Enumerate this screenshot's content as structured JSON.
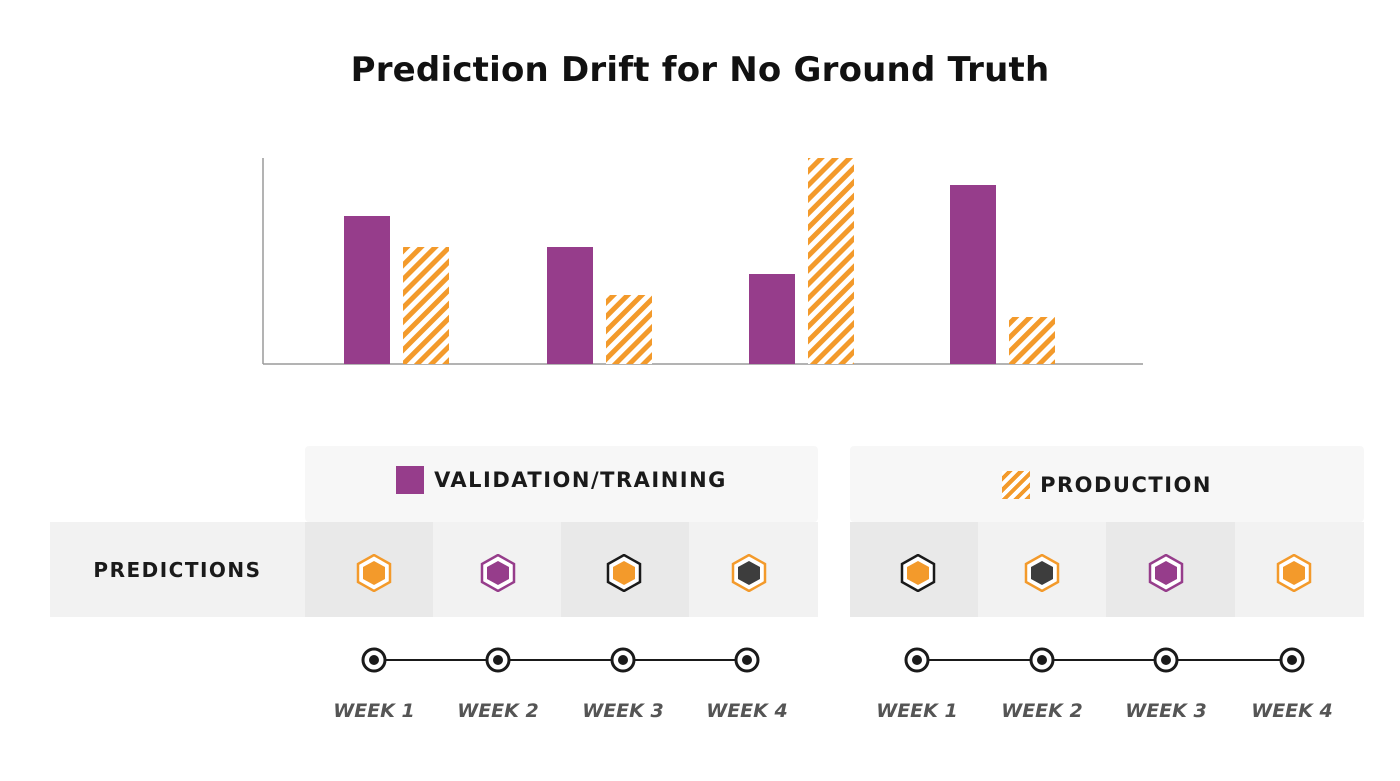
{
  "chart_data": {
    "type": "bar",
    "title": "Prediction Drift for No Ground Truth",
    "xlabel": "",
    "ylabel": "",
    "categories": [
      "",
      "",
      "",
      ""
    ],
    "series": [
      {
        "name": "VALIDATION/TRAINING",
        "values": [
          148,
          117,
          90,
          179
        ],
        "color": "#963d8b",
        "pattern": "solid"
      },
      {
        "name": "PRODUCTION",
        "values": [
          117,
          69,
          206,
          47
        ],
        "color": "#f39a2b",
        "pattern": "hatched"
      }
    ],
    "ylim": [
      0,
      206
    ],
    "grid": false,
    "legend": "bottom"
  },
  "legend": {
    "validation_label": "VALIDATION/TRAINING",
    "production_label": "PRODUCTION"
  },
  "predictions": {
    "row_label": "PREDICTIONS",
    "validation_icons": [
      "hex-orange",
      "hex-purple",
      "hex-orange-dark-outline",
      "hex-dark-orange-outline"
    ],
    "production_icons": [
      "hex-orange-dark-outline",
      "hex-dark-orange-outline",
      "hex-purple",
      "hex-orange"
    ]
  },
  "timeline": {
    "validation_weeks": [
      "WEEK 1",
      "WEEK 2",
      "WEEK 3",
      "WEEK 4"
    ],
    "production_weeks": [
      "WEEK 1",
      "WEEK 2",
      "WEEK 3",
      "WEEK 4"
    ]
  },
  "colors": {
    "purple": "#963d8b",
    "orange": "#f39a2b",
    "dark": "#3d3d3d"
  }
}
